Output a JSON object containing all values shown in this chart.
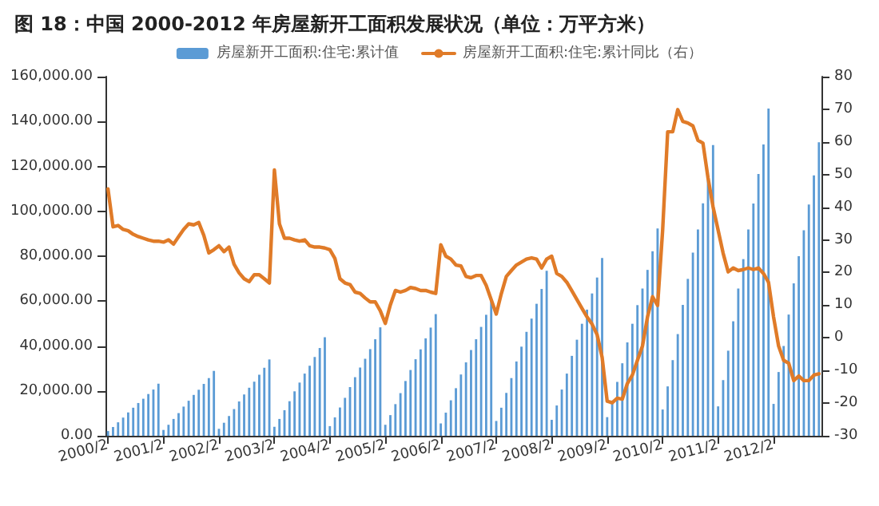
{
  "chart_data": {
    "type": "bar",
    "title": "图 18：中国 2000-2012 年房屋新开工面积发展状况（单位：万平方米）",
    "categories": [
      "2000/2",
      null,
      null,
      null,
      null,
      null,
      null,
      null,
      null,
      null,
      null,
      "2001/2",
      null,
      null,
      null,
      null,
      null,
      null,
      null,
      null,
      null,
      null,
      "2002/2",
      null,
      null,
      null,
      null,
      null,
      null,
      null,
      null,
      null,
      null,
      "2003/2",
      null,
      null,
      null,
      null,
      null,
      null,
      null,
      null,
      null,
      null,
      "2004/2",
      null,
      null,
      null,
      null,
      null,
      null,
      null,
      null,
      null,
      null,
      "2005/2",
      null,
      null,
      null,
      null,
      null,
      null,
      null,
      null,
      null,
      null,
      "2006/2",
      null,
      null,
      null,
      null,
      null,
      null,
      null,
      null,
      null,
      null,
      "2007/2",
      null,
      null,
      null,
      null,
      null,
      null,
      null,
      null,
      null,
      null,
      "2008/2",
      null,
      null,
      null,
      null,
      null,
      null,
      null,
      null,
      null,
      null,
      "2009/2",
      null,
      null,
      null,
      null,
      null,
      null,
      null,
      null,
      null,
      null,
      "2010/2",
      null,
      null,
      null,
      null,
      null,
      null,
      null,
      null,
      null,
      null,
      "2011/2",
      null,
      null,
      null,
      null,
      null,
      null,
      null,
      null,
      null,
      null,
      "2012/2",
      null,
      null,
      null,
      null,
      null,
      null,
      null,
      null,
      null
    ],
    "series": [
      {
        "name": "房屋新开工面积:住宅:累计值",
        "color": "#5b9bd5",
        "values": [
          2100,
          3900,
          6000,
          8100,
          10400,
          12500,
          14600,
          16500,
          18600,
          20600,
          23200,
          2600,
          4900,
          7500,
          10100,
          13000,
          15600,
          18200,
          20500,
          23100,
          25700,
          28900,
          3100,
          5800,
          8800,
          11900,
          15300,
          18400,
          21400,
          24100,
          27200,
          30300,
          34000,
          4000,
          7500,
          11400,
          15400,
          19800,
          23700,
          27700,
          31200,
          35100,
          39100,
          43900,
          4300,
          8200,
          12600,
          16900,
          21700,
          26100,
          30400,
          34300,
          38600,
          43000,
          48300,
          4900,
          9200,
          14100,
          19000,
          24400,
          29300,
          34100,
          38500,
          43400,
          48200,
          54200,
          5500,
          10300,
          15800,
          21200,
          27300,
          32700,
          38200,
          43000,
          48500,
          53900,
          60600,
          6600,
          12500,
          19100,
          25700,
          33100,
          39700,
          46300,
          52200,
          58800,
          65400,
          73500,
          7100,
          13500,
          20600,
          27700,
          35600,
          42800,
          49900,
          56200,
          63400,
          70500,
          79200,
          8300,
          15700,
          24000,
          32300,
          41600,
          49900,
          58200,
          65600,
          73900,
          82200,
          92400,
          11700,
          22000,
          33700,
          45300,
          58300,
          69900,
          81600,
          91900,
          103600,
          115300,
          129500,
          13100,
          24800,
          37900,
          51000,
          65600,
          78700,
          91900,
          103500,
          116600,
          129800,
          145800,
          14200,
          28400,
          40000,
          54000,
          67900,
          80000,
          91600,
          103000,
          116000,
          130800
        ]
      },
      {
        "name": "房屋新开工面积:住宅:累计同比（右）",
        "type": "line",
        "axis": "y2",
        "color": "#e07b28",
        "values": [
          45.6,
          34,
          34.4,
          33.2,
          32.8,
          31.7,
          31,
          30.5,
          30,
          29.6,
          29.6,
          29.3,
          30,
          28.7,
          31,
          33.2,
          34.9,
          34.6,
          35.3,
          31.4,
          26,
          27,
          28.2,
          26.4,
          27.8,
          22.5,
          19.9,
          18.1,
          17.2,
          19.3,
          19.3,
          18.1,
          16.8,
          51.4,
          34.9,
          30.5,
          30.5,
          30,
          29.6,
          30,
          28.2,
          27.8,
          27.8,
          27.5,
          27,
          24.3,
          18.1,
          16.8,
          16.3,
          14,
          13.6,
          12.2,
          11,
          11,
          8.3,
          4.4,
          10.1,
          14.5,
          14,
          14.5,
          15.4,
          15.1,
          14.5,
          14.5,
          14,
          13.6,
          28.5,
          25,
          24.1,
          22.3,
          22,
          18.8,
          18.4,
          19.1,
          19.1,
          16.1,
          11.7,
          7.3,
          13.5,
          18.8,
          20.6,
          22.3,
          23.2,
          24.1,
          24.5,
          24.1,
          21.4,
          24.1,
          25,
          19.7,
          18.8,
          17,
          14.4,
          11.7,
          9,
          6.4,
          4.2,
          1,
          -6,
          -19.4,
          -19.9,
          -18.5,
          -18.8,
          -14,
          -11.4,
          -6.9,
          -2.5,
          6.4,
          12.6,
          9.9,
          33,
          63.1,
          63.1,
          69.9,
          66.3,
          65.8,
          64.9,
          60.5,
          59.6,
          49,
          40.1,
          33,
          25.9,
          20.2,
          21.4,
          20.6,
          20.9,
          21.4,
          20.9,
          21.4,
          19.7,
          17,
          6.4,
          -2.5,
          -6.9,
          -7.8,
          -13.1,
          -11.7,
          -13.1,
          -13.1,
          -11.4,
          -11
        ]
      }
    ],
    "ylim": [
      0,
      160000
    ],
    "yticks": [
      {
        "value": 0,
        "label": "0.00"
      },
      {
        "value": 20000,
        "label": "20,000.00"
      },
      {
        "value": 40000,
        "label": "40,000.00"
      },
      {
        "value": 60000,
        "label": "60,000.00"
      },
      {
        "value": 80000,
        "label": "80,000.00"
      },
      {
        "value": 100000,
        "label": "100,000.00"
      },
      {
        "value": 120000,
        "label": "120,000.00"
      },
      {
        "value": 140000,
        "label": "140,000.00"
      },
      {
        "value": 160000,
        "label": "160,000.00"
      }
    ],
    "y2lim": [
      -30,
      80
    ],
    "y2ticks": [
      -30,
      -20,
      -10,
      0,
      10,
      20,
      30,
      40,
      50,
      60,
      70,
      80
    ],
    "legend": "top",
    "marker": "none",
    "line_style": "solid",
    "grid": false
  }
}
